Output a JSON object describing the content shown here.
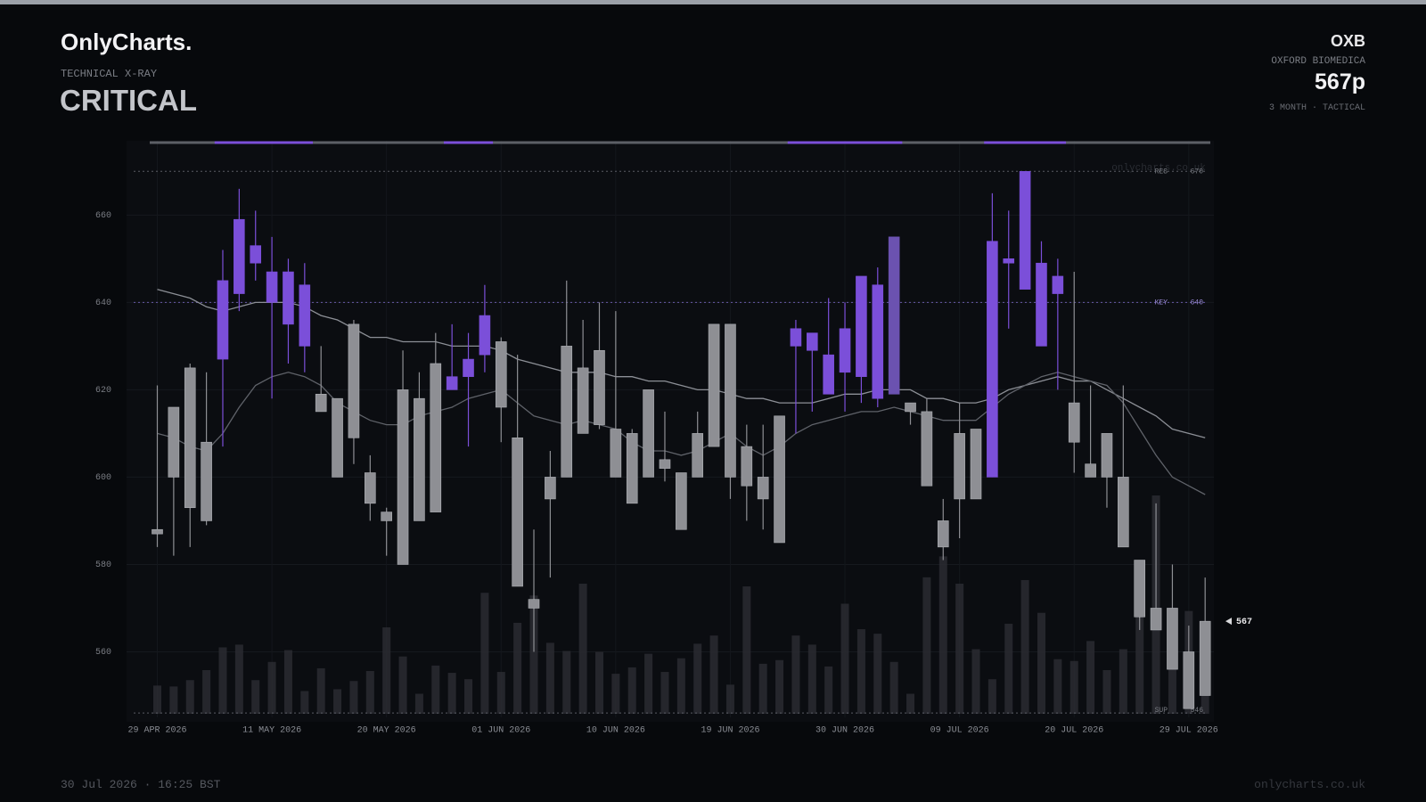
{
  "header": {
    "brand": "OnlyCharts.",
    "section": "TECHNICAL X-RAY",
    "status": "CRITICAL",
    "ticker": "OXB",
    "company": "OXFORD BIOMEDICA",
    "price": "567p",
    "horizon": "3 MONTH · TACTICAL"
  },
  "footer": {
    "timestamp": "30 Jul 2026 · 16:25 BST",
    "site": "onlycharts.co.uk"
  },
  "chart_data": {
    "type": "candlestick",
    "watermark": "onlycharts.co.uk",
    "categories": [
      "29 APR 2026",
      null,
      null,
      null,
      null,
      null,
      null,
      "11 MAY 2026",
      null,
      null,
      null,
      null,
      null,
      null,
      "20 MAY 2026",
      null,
      null,
      null,
      null,
      null,
      null,
      "01 JUN 2026",
      null,
      null,
      null,
      null,
      null,
      null,
      "10 JUN 2026",
      null,
      null,
      null,
      null,
      null,
      null,
      "19 JUN 2026",
      null,
      null,
      null,
      null,
      null,
      null,
      "30 JUN 2026",
      null,
      null,
      null,
      null,
      null,
      null,
      "09 JUL 2026",
      null,
      null,
      null,
      null,
      null,
      null,
      "20 JUL 2026",
      null,
      null,
      null,
      null,
      null,
      null,
      "29 JUL 2026",
      null
    ],
    "open": [
      587,
      600,
      593,
      608,
      627,
      642,
      653,
      647,
      647,
      644,
      619,
      618,
      609,
      601,
      592,
      580,
      590,
      592,
      620,
      623,
      628,
      631,
      609,
      572,
      595,
      600,
      625,
      629,
      611,
      610,
      600,
      604,
      601,
      600,
      607,
      635,
      607,
      600,
      585,
      630,
      633,
      619,
      624,
      646,
      618,
      619,
      617,
      615,
      590,
      595,
      611,
      600,
      649,
      643,
      649,
      646,
      617,
      603,
      600,
      600,
      581,
      570,
      570,
      560,
      550
    ],
    "high": [
      621,
      616,
      626,
      624,
      652,
      666,
      661,
      655,
      650,
      649,
      630,
      618,
      636,
      605,
      593,
      629,
      624,
      633,
      635,
      633,
      644,
      632,
      628,
      588,
      606,
      645,
      636,
      640,
      638,
      611,
      620,
      615,
      601,
      615,
      635,
      635,
      612,
      612,
      614,
      636,
      633,
      641,
      640,
      646,
      648,
      655,
      617,
      618,
      595,
      617,
      611,
      665,
      661,
      670,
      654,
      650,
      647,
      621,
      610,
      621,
      581,
      594,
      580,
      566,
      577
    ],
    "low": [
      584,
      582,
      584,
      589,
      607,
      638,
      645,
      618,
      626,
      624,
      615,
      600,
      603,
      590,
      582,
      580,
      590,
      592,
      620,
      607,
      624,
      608,
      575,
      560,
      577,
      600,
      610,
      611,
      600,
      594,
      600,
      599,
      588,
      600,
      607,
      595,
      590,
      588,
      585,
      610,
      615,
      619,
      615,
      617,
      616,
      619,
      612,
      598,
      581,
      586,
      595,
      600,
      634,
      643,
      630,
      620,
      601,
      600,
      593,
      584,
      565,
      565,
      556,
      547,
      550
    ],
    "close": [
      588,
      616,
      625,
      590,
      645,
      659,
      649,
      640,
      635,
      630,
      615,
      600,
      635,
      594,
      590,
      620,
      618,
      626,
      623,
      627,
      637,
      616,
      575,
      570,
      600,
      630,
      610,
      612,
      600,
      594,
      620,
      602,
      588,
      610,
      635,
      600,
      598,
      595,
      614,
      634,
      629,
      628,
      634,
      623,
      644,
      655,
      615,
      598,
      584,
      610,
      595,
      654,
      650,
      670,
      630,
      642,
      608,
      600,
      610,
      584,
      568,
      565,
      556,
      547,
      567
    ],
    "colors": [
      "#8e8f94",
      "#8e8f94",
      "#8e8f94",
      "#8e8f94",
      "#7b4fd9",
      "#7b4fd9",
      "#7b4fd9",
      "#7b4fd9",
      "#7b4fd9",
      "#7b4fd9",
      "#8e8f94",
      "#8e8f94",
      "#8e8f94",
      "#8e8f94",
      "#8e8f94",
      "#8e8f94",
      "#8e8f94",
      "#8e8f94",
      "#7b4fd9",
      "#7b4fd9",
      "#7b4fd9",
      "#8e8f94",
      "#8e8f94",
      "#8e8f94",
      "#8e8f94",
      "#8e8f94",
      "#8e8f94",
      "#8e8f94",
      "#8e8f94",
      "#8e8f94",
      "#8e8f94",
      "#8e8f94",
      "#8e8f94",
      "#8e8f94",
      "#8e8f94",
      "#8e8f94",
      "#8e8f94",
      "#8e8f94",
      "#8e8f94",
      "#7b4fd9",
      "#7b4fd9",
      "#7b4fd9",
      "#7b4fd9",
      "#7b4fd9",
      "#7b4fd9",
      "#6b52b0",
      "#8e8f94",
      "#8e8f94",
      "#8e8f94",
      "#8e8f94",
      "#8e8f94",
      "#7b4fd9",
      "#7b4fd9",
      "#7b4fd9",
      "#7b4fd9",
      "#7b4fd9",
      "#8e8f94",
      "#8e8f94",
      "#8e8f94",
      "#8e8f94",
      "#8e8f94",
      "#8e8f94",
      "#8e8f94",
      "#8e8f94",
      "#8e8f94"
    ],
    "volume": [
      31,
      30,
      37,
      48,
      73,
      76,
      37,
      57,
      70,
      25,
      50,
      27,
      36,
      47,
      95,
      63,
      22,
      53,
      45,
      38,
      133,
      46,
      100,
      130,
      78,
      69,
      143,
      68,
      44,
      51,
      66,
      46,
      61,
      77,
      86,
      32,
      140,
      55,
      59,
      86,
      76,
      52,
      121,
      93,
      88,
      57,
      22,
      150,
      173,
      143,
      71,
      38,
      99,
      147,
      111,
      60,
      58,
      80,
      48,
      71,
      115,
      240,
      93,
      113,
      102
    ],
    "volume_color": "#2a2c31",
    "series": [
      {
        "color": "#8c8f96",
        "values": [
          643,
          642,
          641,
          639,
          638,
          639,
          640,
          640,
          640,
          639,
          637,
          636,
          634,
          632,
          632,
          631,
          631,
          631,
          630,
          630,
          630,
          629,
          627,
          626,
          625,
          624,
          624,
          624,
          623,
          623,
          622,
          622,
          621,
          620,
          620,
          619,
          618,
          618,
          617,
          617,
          617,
          618,
          619,
          619,
          620,
          620,
          620,
          618,
          618,
          617,
          617,
          618,
          620,
          621,
          622,
          623,
          622,
          622,
          620,
          618,
          616,
          614,
          611,
          610,
          609
        ]
      },
      {
        "color": "#5f6269",
        "values": [
          610,
          609,
          607,
          606,
          610,
          616,
          621,
          623,
          624,
          623,
          621,
          617,
          615,
          613,
          612,
          612,
          614,
          615,
          616,
          618,
          619,
          620,
          617,
          614,
          613,
          612,
          613,
          612,
          611,
          608,
          606,
          606,
          605,
          606,
          608,
          610,
          607,
          605,
          607,
          610,
          612,
          613,
          614,
          615,
          615,
          616,
          615,
          614,
          613,
          613,
          613,
          616,
          619,
          621,
          623,
          624,
          623,
          622,
          621,
          617,
          611,
          605,
          600,
          598,
          596
        ]
      }
    ],
    "levels": [
      {
        "label": "RES",
        "value": 670,
        "color": "#5a5d64"
      },
      {
        "label": "KEY",
        "value": 640,
        "color": "#6a5aa8"
      },
      {
        "label": "SUP",
        "value": 546,
        "color": "#5a5d64"
      }
    ],
    "last": 567,
    "ylim": [
      545,
      677
    ],
    "yticks": [
      560,
      580,
      600,
      620,
      640,
      660
    ],
    "grid": true
  }
}
